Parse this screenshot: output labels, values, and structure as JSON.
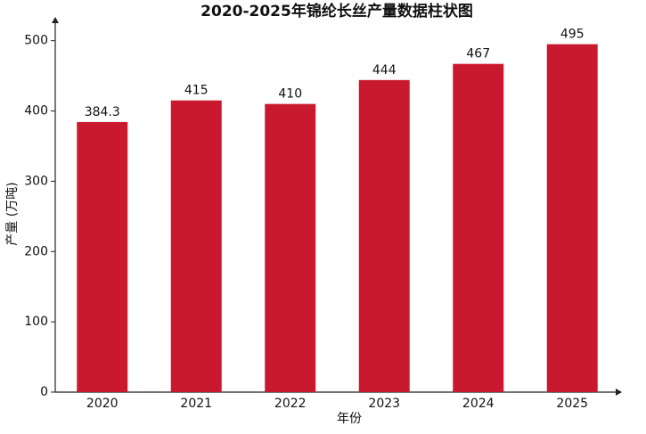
{
  "chart_data": {
    "type": "bar",
    "title": "2020-2025年锦纶长丝产量数据柱状图",
    "x_label": "年份",
    "y_label": "产量 (万吨)",
    "categories": [
      "2020",
      "2021",
      "2022",
      "2023",
      "2024",
      "2025"
    ],
    "values": [
      384.3,
      415,
      410,
      444,
      467,
      495
    ],
    "color": "#c8192e",
    "ylim": [
      0,
      530
    ],
    "yticks": [
      0,
      100,
      200,
      300,
      400,
      500
    ],
    "grid": false
  }
}
